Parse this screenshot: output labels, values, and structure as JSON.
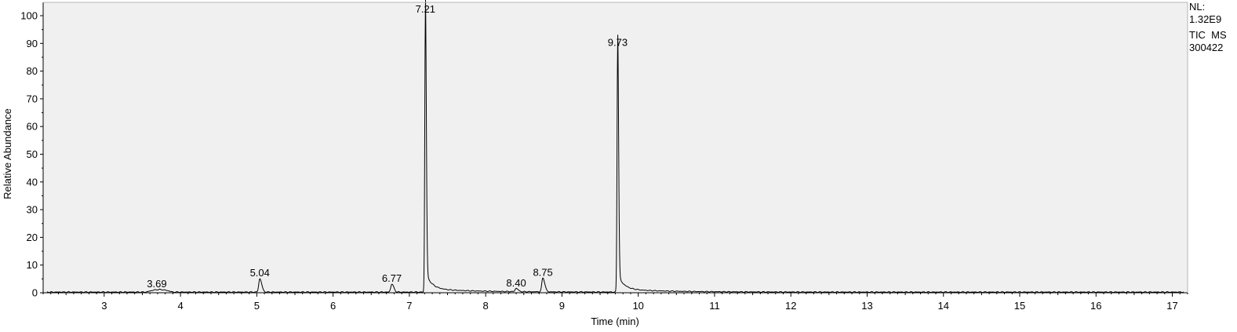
{
  "chart_data": {
    "type": "line",
    "xlabel": "Time (min)",
    "ylabel": "Relative Abundance",
    "xlim": [
      2.2,
      17.2
    ],
    "ylim": [
      0,
      100
    ],
    "x_ticks": [
      "3",
      "4",
      "5",
      "6",
      "7",
      "8",
      "9",
      "10",
      "11",
      "12",
      "13",
      "14",
      "15",
      "16",
      "17"
    ],
    "y_ticks": [
      "0",
      "10",
      "20",
      "30",
      "40",
      "50",
      "60",
      "70",
      "80",
      "90",
      "100"
    ],
    "grid": false,
    "background_color": "#f0f0f0",
    "line_color": "#000000",
    "peaks": [
      {
        "label": "3.69",
        "x": 3.69,
        "y": 0.9
      },
      {
        "label": "5.04",
        "x": 5.04,
        "y": 4.8
      },
      {
        "label": "6.77",
        "x": 6.77,
        "y": 2.9
      },
      {
        "label": "7.21",
        "x": 7.21,
        "y": 100
      },
      {
        "label": "8.40",
        "x": 8.4,
        "y": 1.2
      },
      {
        "label": "8.75",
        "x": 8.75,
        "y": 5.0
      },
      {
        "label": "9.73",
        "x": 9.73,
        "y": 88
      }
    ]
  },
  "info": {
    "nl_label": "NL:",
    "nl_value": "1.32E9",
    "scan_filter": "TIC  MS",
    "sample_id": "300422"
  }
}
